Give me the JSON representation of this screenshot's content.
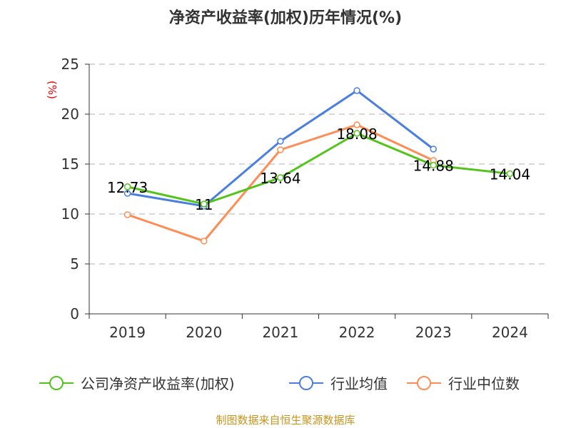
{
  "chart_data": {
    "type": "line",
    "title": "净资产收益率(加权)历年情况(%)",
    "ylabel": "(%)",
    "ylim": [
      0,
      25
    ],
    "yticks": [
      0,
      5,
      10,
      15,
      20,
      25
    ],
    "grid": true,
    "legend_placement": "bottom",
    "categories": [
      "2019",
      "2020",
      "2021",
      "2022",
      "2023",
      "2024"
    ],
    "series": [
      {
        "name": "公司净资产收益率(加权)",
        "color": "#52c41a",
        "values": [
          12.73,
          11,
          13.64,
          18.08,
          14.88,
          14.04
        ],
        "labels": [
          "12.73",
          "11",
          "13.64",
          "18.08",
          "14.88",
          "14.04"
        ]
      },
      {
        "name": "行业均值",
        "color": "#4a7fe0",
        "values": [
          12.07,
          10.79,
          17.29,
          22.36,
          16.5,
          null
        ]
      },
      {
        "name": "行业中位数",
        "color": "#ff8c55",
        "values": [
          9.93,
          7.29,
          16.43,
          18.93,
          15.36,
          null
        ]
      }
    ]
  },
  "source": "制图数据来自恒生聚源数据库"
}
